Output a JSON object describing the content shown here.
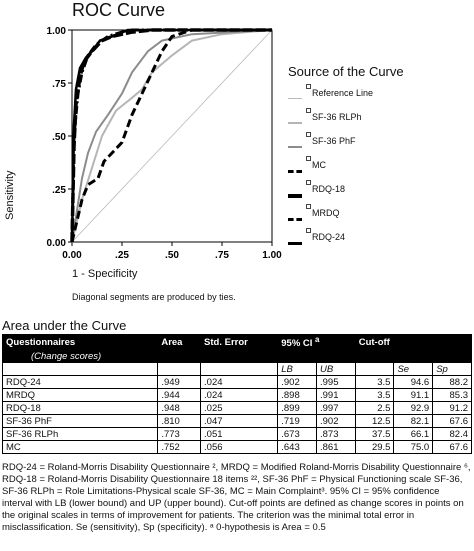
{
  "chart_data": {
    "type": "line",
    "title": "ROC Curve",
    "xlabel": "1 - Specificity",
    "ylabel": "Sensitivity",
    "xlim": [
      0,
      1
    ],
    "ylim": [
      0,
      1
    ],
    "x_ticks": [
      "0.00",
      ".25",
      ".50",
      ".75",
      "1.00"
    ],
    "y_ticks": [
      "0.00",
      ".25",
      ".50",
      ".75",
      "1.00"
    ],
    "legend_title": "Source of the Curve",
    "legend_position": "right",
    "note": "Diagonal segments are produced by ties.",
    "series": [
      {
        "name": "Reference Line",
        "color": "#bbbbbb",
        "style": "thin",
        "points": [
          [
            0,
            0
          ],
          [
            1,
            1
          ]
        ]
      },
      {
        "name": "SF-36 RLPh",
        "color": "#b5b5b5",
        "style": "solid-light",
        "points": [
          [
            0,
            0
          ],
          [
            0.05,
            0.2
          ],
          [
            0.1,
            0.35
          ],
          [
            0.15,
            0.5
          ],
          [
            0.22,
            0.62
          ],
          [
            0.3,
            0.68
          ],
          [
            0.35,
            0.72
          ],
          [
            0.4,
            0.8
          ],
          [
            0.5,
            0.88
          ],
          [
            0.6,
            0.95
          ],
          [
            0.75,
            0.98
          ],
          [
            1,
            1
          ]
        ]
      },
      {
        "name": "SF-36 PhF",
        "color": "#8c8c8c",
        "style": "solid",
        "points": [
          [
            0,
            0
          ],
          [
            0.05,
            0.3
          ],
          [
            0.08,
            0.42
          ],
          [
            0.12,
            0.52
          ],
          [
            0.18,
            0.6
          ],
          [
            0.25,
            0.7
          ],
          [
            0.3,
            0.8
          ],
          [
            0.38,
            0.9
          ],
          [
            0.45,
            0.95
          ],
          [
            0.6,
            0.98
          ],
          [
            1,
            1
          ]
        ]
      },
      {
        "name": "MC",
        "color": "#000000",
        "style": "dashed",
        "points": [
          [
            0,
            0
          ],
          [
            0.03,
            0.12
          ],
          [
            0.05,
            0.2
          ],
          [
            0.08,
            0.27
          ],
          [
            0.13,
            0.3
          ],
          [
            0.16,
            0.38
          ],
          [
            0.2,
            0.42
          ],
          [
            0.25,
            0.47
          ],
          [
            0.3,
            0.6
          ],
          [
            0.35,
            0.7
          ],
          [
            0.4,
            0.8
          ],
          [
            0.45,
            0.9
          ],
          [
            0.5,
            0.97
          ],
          [
            0.6,
            1
          ],
          [
            1,
            1
          ]
        ]
      },
      {
        "name": "RDQ-18",
        "color": "#000000",
        "style": "dashed-thick",
        "points": [
          [
            0,
            0
          ],
          [
            0.01,
            0.45
          ],
          [
            0.02,
            0.65
          ],
          [
            0.04,
            0.78
          ],
          [
            0.06,
            0.85
          ],
          [
            0.1,
            0.9
          ],
          [
            0.15,
            0.95
          ],
          [
            0.2,
            0.97
          ],
          [
            0.3,
            0.99
          ],
          [
            0.4,
            1
          ],
          [
            1,
            1
          ]
        ]
      },
      {
        "name": "MRDQ",
        "color": "#000000",
        "style": "dashdot",
        "points": [
          [
            0,
            0
          ],
          [
            0.01,
            0.5
          ],
          [
            0.03,
            0.7
          ],
          [
            0.05,
            0.8
          ],
          [
            0.08,
            0.88
          ],
          [
            0.12,
            0.93
          ],
          [
            0.18,
            0.97
          ],
          [
            0.25,
            0.99
          ],
          [
            0.3,
            1
          ],
          [
            1,
            1
          ]
        ]
      },
      {
        "name": "RDQ-24",
        "color": "#000000",
        "style": "solid-thick",
        "points": [
          [
            0,
            0
          ],
          [
            0.01,
            0.55
          ],
          [
            0.02,
            0.72
          ],
          [
            0.04,
            0.82
          ],
          [
            0.07,
            0.87
          ],
          [
            0.1,
            0.9
          ],
          [
            0.14,
            0.95
          ],
          [
            0.2,
            0.97
          ],
          [
            0.28,
            1
          ],
          [
            1,
            1
          ]
        ]
      }
    ]
  },
  "table": {
    "title": "Area under the Curve",
    "headers": {
      "questionnaires": "Questionnaires",
      "change_scores": "(Change scores)",
      "area": "Area",
      "std_error": "Std. Error",
      "ci": "95% CI",
      "ci_sup": "a",
      "cutoff": "Cut-off",
      "lb": "LB",
      "ub": "UB",
      "se": "Se",
      "sp": "Sp"
    },
    "rows": [
      {
        "name": "RDQ-24",
        "area": ".949",
        "se_err": ".024",
        "lb": ".902",
        "ub": ".995",
        "cutoff": "3.5",
        "se": "94.6",
        "sp": "88.2"
      },
      {
        "name": "MRDQ",
        "area": ".944",
        "se_err": ".024",
        "lb": ".898",
        "ub": ".991",
        "cutoff": "3.5",
        "se": "91.1",
        "sp": "85.3"
      },
      {
        "name": "RDQ-18",
        "area": ".948",
        "se_err": ".025",
        "lb": ".899",
        "ub": ".997",
        "cutoff": "2.5",
        "se": "92.9",
        "sp": "91.2"
      },
      {
        "name": "SF-36 PhF",
        "area": ".810",
        "se_err": ".047",
        "lb": ".719",
        "ub": ".902",
        "cutoff": "12.5",
        "se": "82.1",
        "sp": "67.6"
      },
      {
        "name": "SF-36 RLPh",
        "area": ".773",
        "se_err": ".051",
        "lb": ".673",
        "ub": ".873",
        "cutoff": "37.5",
        "se": "66.1",
        "sp": "82.4"
      },
      {
        "name": "MC",
        "area": ".752",
        "se_err": ".056",
        "lb": ".643",
        "ub": ".861",
        "cutoff": "29.5",
        "se": "75.0",
        "sp": "67.6"
      }
    ]
  },
  "footnote": "RDQ-24 = Roland-Morris Disability Questionnaire ², MRDQ = Modified Roland-Morris Disability Questionnaire ⁶, RDQ-18 = Roland-Morris Disability Questionnaire 18 items ²², SF-36 PhF = Physical Functioning scale SF-36, SF-36 RLPh = Role Limitations-Physical scale SF-36, MC = Main Complaint³. 95% CI = 95% confidence interval with LB (lower bound) and UP (upper bound). Cut-off points are defined as change scores in points on the original scales in terms of improvement for patients. The criterion was the minimal total error in misclassification. Se (sensitivity), Sp (specificity). ᵃ 0-hypothesis is Area = 0.5"
}
